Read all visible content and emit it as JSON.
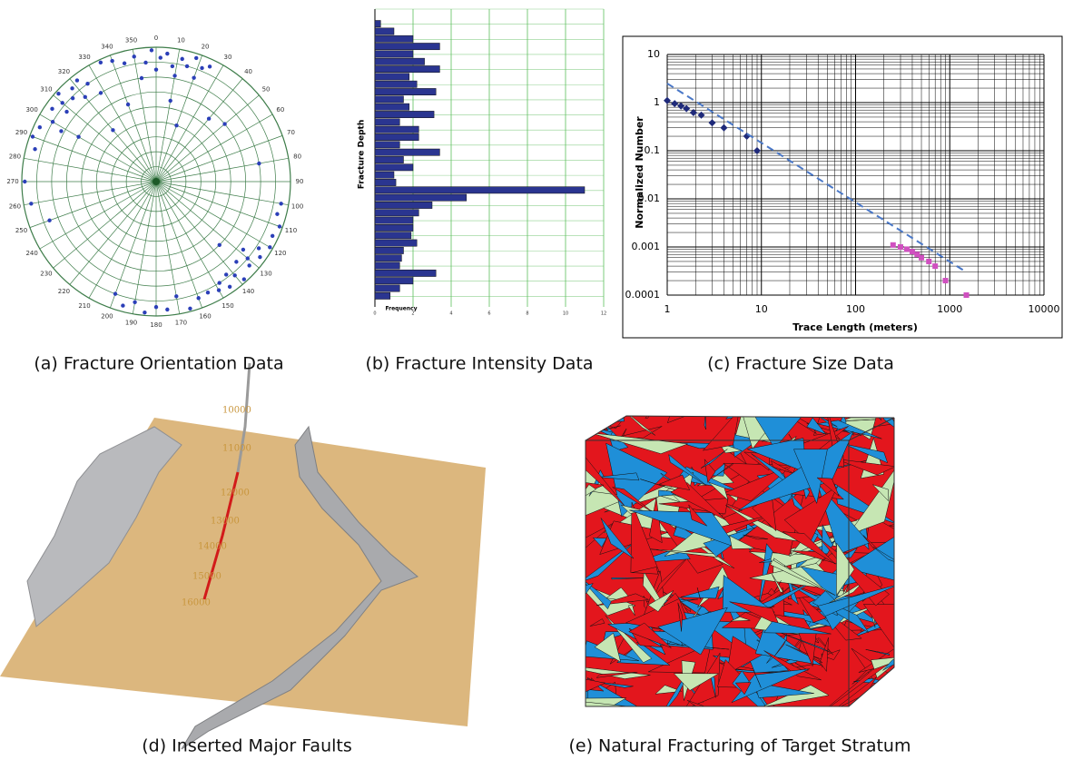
{
  "chart_data": [
    {
      "type": "polar-scatter",
      "caption": "(a) Fracture Orientation Data",
      "thetaticks": [
        0,
        10,
        20,
        30,
        40,
        50,
        60,
        70,
        80,
        90,
        100,
        110,
        120,
        130,
        140,
        150,
        160,
        170,
        180,
        190,
        200,
        210,
        220,
        230,
        240,
        250,
        260,
        270,
        280,
        290,
        300,
        310,
        320,
        330,
        340,
        350
      ],
      "rlim": [
        0,
        90
      ],
      "color": "#2b3fb8",
      "theta": [
        350,
        355,
        358,
        2,
        5,
        8,
        12,
        15,
        18,
        22,
        345,
        340,
        0,
        10,
        20,
        335,
        25,
        352,
        300,
        305,
        308,
        310,
        312,
        315,
        318,
        320,
        322,
        325,
        295,
        298,
        290,
        285,
        328,
        120,
        123,
        126,
        130,
        132,
        135,
        138,
        140,
        143,
        145,
        148,
        150,
        128,
        115,
        110,
        155,
        105,
        100,
        180,
        185,
        190,
        175,
        195,
        200,
        170,
        165,
        160,
        270,
        260,
        250,
        40,
        50,
        80,
        300,
        320,
        20,
        135,
        10,
        340
      ],
      "r": [
        85,
        80,
        88,
        83,
        86,
        78,
        84,
        80,
        87,
        82,
        82,
        86,
        75,
        72,
        74,
        88,
        85,
        70,
        80,
        85,
        76,
        82,
        88,
        79,
        84,
        74,
        86,
        80,
        86,
        72,
        88,
        84,
        70,
        88,
        82,
        86,
        80,
        84,
        76,
        88,
        82,
        78,
        86,
        80,
        84,
        74,
        86,
        88,
        82,
        84,
        85,
        84,
        88,
        82,
        86,
        86,
        80,
        78,
        88,
        83,
        88,
        85,
        76,
        55,
        60,
        70,
        60,
        45,
        40,
        60,
        55,
        55
      ]
    },
    {
      "type": "hbar",
      "caption": "(b) Fracture Intensity Data",
      "ylabel": "Fracture Depth",
      "xlabel": "Frequency",
      "categories": [
        null,
        null,
        null,
        null,
        null,
        null,
        null,
        null,
        null,
        null,
        null,
        null,
        null,
        null,
        null,
        null,
        null,
        null,
        null,
        null,
        null,
        null,
        null,
        null,
        null,
        null,
        null,
        null,
        null,
        null,
        null,
        null,
        null,
        null,
        null,
        null,
        null
      ],
      "values": [
        0.3,
        1,
        2,
        3.4,
        2,
        2.6,
        3.4,
        1.8,
        2.2,
        3.2,
        1.5,
        1.8,
        3.1,
        1.3,
        2.3,
        2.3,
        1.3,
        3.4,
        1.5,
        2,
        1,
        1.1,
        11,
        4.8,
        3,
        2.3,
        2,
        2,
        1.9,
        2.2,
        1.5,
        1.4,
        1.3,
        3.2,
        2,
        1.3,
        0.8
      ],
      "xlim": [
        0,
        12
      ],
      "xticks": [
        0,
        2,
        4,
        6,
        8,
        10,
        12
      ],
      "color": "#2a3590",
      "grid": true
    },
    {
      "type": "scatter",
      "caption": "(c) Fracture Size Data",
      "xlabel": "Trace Length (meters)",
      "ylabel": "Normalized Number",
      "xscale": "log",
      "yscale": "log",
      "xlim": [
        1,
        10000
      ],
      "ylim": [
        0.0001,
        10
      ],
      "xticks": [
        1,
        10,
        100,
        1000,
        10000
      ],
      "yticks": [
        0.0001,
        0.001,
        0.01,
        0.1,
        1,
        10
      ],
      "grid": true,
      "series": [
        {
          "color": "#1f2a7a",
          "marker": "diamond",
          "x": [
            1,
            1.2,
            1.4,
            1.6,
            1.9,
            2.3,
            3,
            4,
            7,
            9
          ],
          "values": [
            1.1,
            0.95,
            0.85,
            0.75,
            0.62,
            0.55,
            0.38,
            0.3,
            0.2,
            0.1
          ]
        },
        {
          "color": "#d050c0",
          "marker": "square",
          "x": [
            250,
            300,
            350,
            400,
            450,
            500,
            600,
            700,
            900,
            1500
          ],
          "values": [
            0.0011,
            0.001,
            0.0009,
            0.0008,
            0.0007,
            0.0006,
            0.0005,
            0.0004,
            0.0002,
            0.0001
          ]
        },
        {
          "color": "#4a78c8",
          "marker": "dashed-line",
          "x": [
            1,
            1500
          ],
          "values": [
            2.5,
            0.0003
          ]
        }
      ]
    }
  ],
  "figures": [
    {
      "caption": "(d) Inserted Major Faults",
      "depth_labels": [
        "10000",
        "11000",
        "12000",
        "13000",
        "14000",
        "15000",
        "16000"
      ]
    },
    {
      "caption": "(e) Natural Fracturing of Target Stratum"
    }
  ]
}
